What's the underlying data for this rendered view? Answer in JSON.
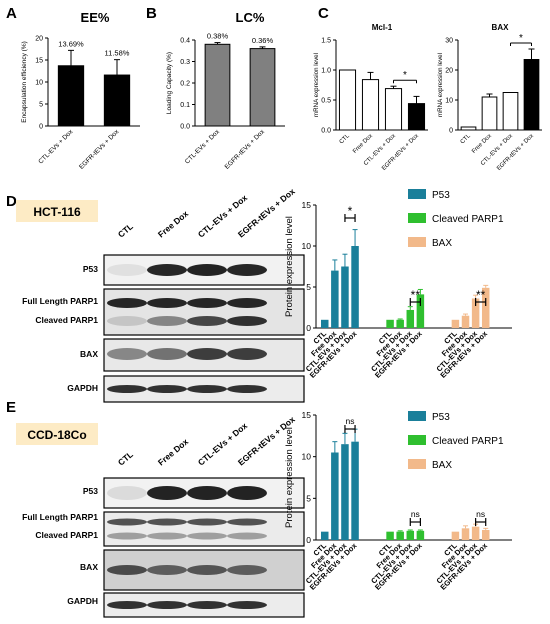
{
  "colors": {
    "p53": "#1a7f9a",
    "cleaved_parp1": "#2fbf2f",
    "bax": "#f2b98a",
    "ee_bar": "#000000",
    "lc_bar": "#808080",
    "cell_label_bg": "#fdebc5"
  },
  "panels": {
    "A": {
      "letter": "A",
      "title": "EE%"
    },
    "B": {
      "letter": "B",
      "title": "LC%"
    },
    "C": {
      "letter": "C",
      "mcl1_title": "Mcl-1",
      "bax_title": "BAX"
    },
    "D": {
      "letter": "D",
      "cell_line": "HCT-116"
    },
    "E": {
      "letter": "E",
      "cell_line": "CCD-18Co"
    }
  },
  "blot": {
    "lanes": [
      "CTL",
      "Free Dox",
      "CTL-EVs + Dox",
      "EGFR-tEVs + Dox"
    ],
    "rows_D": [
      "P53",
      "Full Length PARP1",
      "Cleaved PARP1",
      "BAX",
      "GAPDH"
    ],
    "rows_E": [
      "P53",
      "Full Length PARP1",
      "Cleaved PARP1",
      "BAX",
      "GAPDH"
    ]
  },
  "chart_data": [
    {
      "id": "A",
      "type": "bar",
      "title": "EE%",
      "ylabel": "Encapsulation efficiency (%)",
      "categories": [
        "CTL-EVs + Dox",
        "EGFR-tEVs + Dox"
      ],
      "values": [
        13.69,
        11.58
      ],
      "errors": [
        3.5,
        3.5
      ],
      "data_labels": [
        "13.69%",
        "11.58%"
      ],
      "ylim": [
        0,
        20
      ],
      "yticks": [
        "0",
        "5",
        "10",
        "15",
        "20"
      ]
    },
    {
      "id": "B",
      "type": "bar",
      "title": "LC%",
      "ylabel": "Loading Capacity (%)",
      "categories": [
        "CTL-EVs + Dox",
        "EGFR-tEVs + Dox"
      ],
      "values": [
        0.38,
        0.36
      ],
      "errors": [
        0.008,
        0.008
      ],
      "data_labels": [
        "0.38%",
        "0.36%"
      ],
      "ylim": [
        0,
        0.4
      ],
      "yticks": [
        "0.0",
        "0.1",
        "0.2",
        "0.3",
        "0.4"
      ]
    },
    {
      "id": "C-Mcl1",
      "type": "bar",
      "title": "Mcl-1",
      "ylabel": "mRNA expression level",
      "categories": [
        "CTL",
        "Free Dox",
        "CTL-EVs + Dox",
        "EGFR-tEVs + Dox"
      ],
      "values": [
        1.0,
        0.84,
        0.69,
        0.44
      ],
      "errors": [
        0.0,
        0.12,
        0.04,
        0.12
      ],
      "fills": [
        "#ffffff",
        "#ffffff",
        "#ffffff",
        "#000000"
      ],
      "ylim": [
        0,
        1.5
      ],
      "yticks": [
        "0.0",
        "0.5",
        "1.0",
        "1.5"
      ],
      "significance": [
        {
          "from": 2,
          "to": 3,
          "label": "*"
        }
      ]
    },
    {
      "id": "C-BAX",
      "type": "bar",
      "title": "BAX",
      "ylabel": "mRNA expression level",
      "categories": [
        "CTL",
        "Free Dox",
        "CTL-EVs + Dox",
        "EGFR-tEVs + Dox"
      ],
      "values": [
        1.0,
        11.0,
        12.5,
        23.5
      ],
      "errors": [
        0.0,
        1.0,
        0.0,
        3.5
      ],
      "fills": [
        "#ffffff",
        "#ffffff",
        "#ffffff",
        "#000000"
      ],
      "ylim": [
        0,
        30
      ],
      "yticks": [
        "0",
        "10",
        "20",
        "30"
      ],
      "significance": [
        {
          "from": 2,
          "to": 3,
          "label": "*"
        }
      ]
    },
    {
      "id": "D",
      "type": "bar",
      "ylabel": "Protein expression level",
      "ylim": [
        0,
        15
      ],
      "yticks": [
        "0",
        "5",
        "10",
        "15"
      ],
      "categories": [
        "CTL",
        "Free Dox",
        "CTL-EVs + Dox",
        "EGFR-tEVs + Dox"
      ],
      "series": [
        {
          "name": "P53",
          "values": [
            1.0,
            7.0,
            7.5,
            10.0
          ],
          "errors": [
            0.0,
            1.3,
            1.5,
            2.0
          ]
        },
        {
          "name": "Cleaved PARP1",
          "values": [
            1.0,
            1.0,
            2.2,
            4.1
          ],
          "errors": [
            0.0,
            0.1,
            0.4,
            0.6
          ]
        },
        {
          "name": "BAX",
          "values": [
            1.0,
            1.5,
            3.6,
            4.9
          ],
          "errors": [
            0.0,
            0.2,
            0.4,
            0.3
          ]
        }
      ],
      "significance": [
        "*",
        "**",
        "**"
      ]
    },
    {
      "id": "E",
      "type": "bar",
      "ylabel": "Protein expression level",
      "ylim": [
        0,
        15
      ],
      "yticks": [
        "0",
        "5",
        "10",
        "15"
      ],
      "categories": [
        "CTL",
        "Free Dox",
        "CTL-EVs + Dox",
        "EGFR-tEVs + Dox"
      ],
      "series": [
        {
          "name": "P53",
          "values": [
            1.0,
            10.5,
            11.5,
            11.8
          ],
          "errors": [
            0.0,
            1.3,
            1.3,
            1.5
          ]
        },
        {
          "name": "Cleaved PARP1",
          "values": [
            1.0,
            1.0,
            1.1,
            1.1
          ],
          "errors": [
            0.0,
            0.1,
            0.1,
            0.1
          ]
        },
        {
          "name": "BAX",
          "values": [
            1.0,
            1.4,
            1.6,
            1.2
          ],
          "errors": [
            0.0,
            0.3,
            0.3,
            0.2
          ]
        }
      ],
      "significance": [
        "ns",
        "ns",
        "ns"
      ]
    }
  ]
}
